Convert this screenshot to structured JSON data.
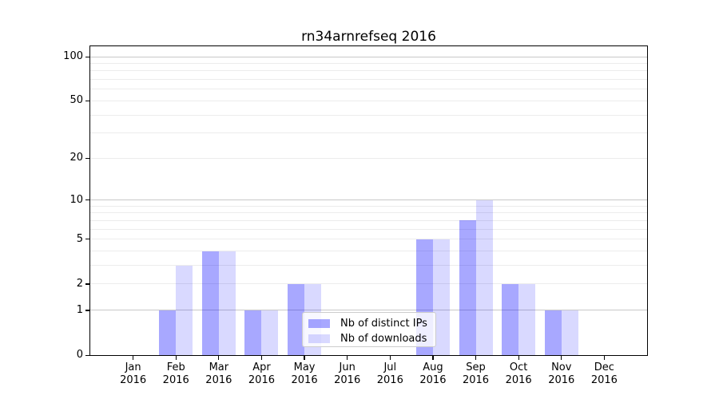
{
  "title": "rn34arnrefseq 2016",
  "chart_data": {
    "type": "bar",
    "title": "rn34arnrefseq 2016",
    "categories": [
      "Jan",
      "Feb",
      "Mar",
      "Apr",
      "May",
      "Jun",
      "Jul",
      "Aug",
      "Sep",
      "Oct",
      "Nov",
      "Dec"
    ],
    "x_tick_year": "2016",
    "series": [
      {
        "name": "Nb of distinct IPs",
        "color": "rgba(0,0,255,0.34)",
        "values": [
          0,
          1,
          4,
          1,
          2,
          0,
          0,
          5,
          7,
          2,
          1,
          0
        ]
      },
      {
        "name": "Nb of downloads",
        "color": "rgba(0,0,255,0.15)",
        "values": [
          0,
          3,
          4,
          1,
          2,
          0,
          0,
          5,
          10,
          2,
          1,
          0
        ]
      }
    ],
    "yscale": "log1p",
    "ylim": [
      0,
      117
    ],
    "ytick_values": [
      0,
      1,
      2,
      5,
      10,
      20,
      50,
      100
    ],
    "ytick_labels": [
      "0",
      "1",
      "2",
      "5",
      "10",
      "20",
      "50",
      "100"
    ],
    "major_gridline_values": [
      1,
      10,
      100
    ],
    "minor_gridline_values": [
      2,
      3,
      4,
      5,
      6,
      7,
      8,
      9,
      20,
      30,
      40,
      50,
      60,
      70,
      80,
      90
    ],
    "grid": true,
    "legend_position": "lower center"
  }
}
